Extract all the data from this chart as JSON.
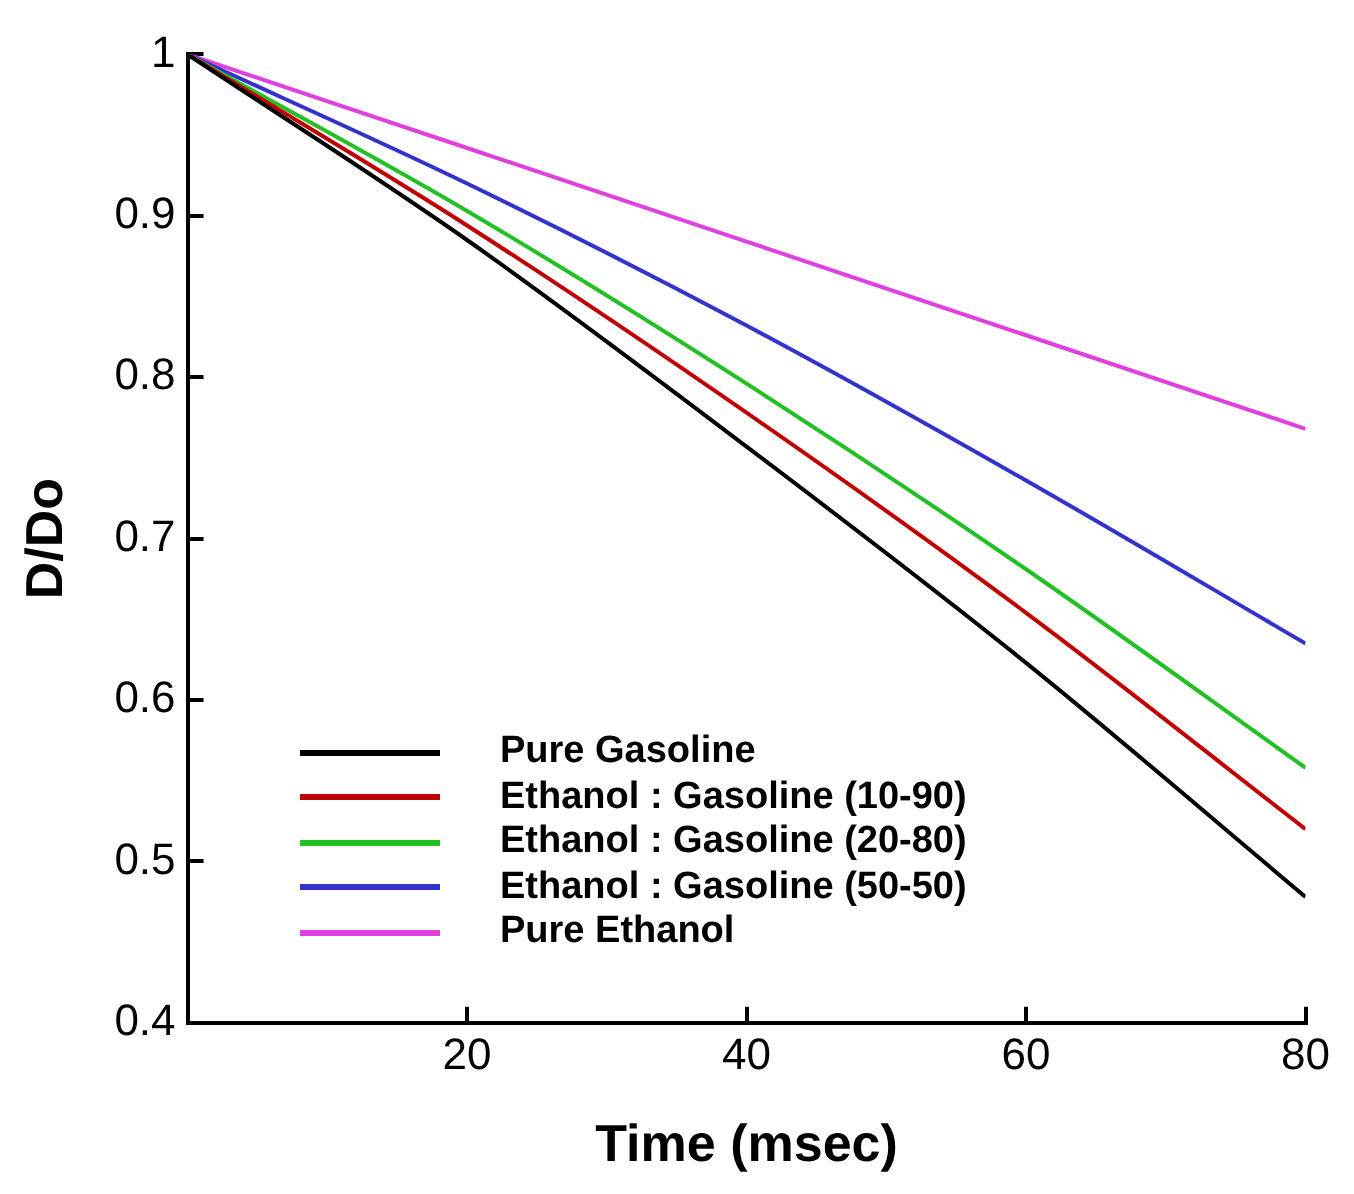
{
  "chart_data": {
    "type": "line",
    "xlabel": "Time (msec)",
    "ylabel": "D/Do",
    "x": [
      0,
      20,
      40,
      60,
      80
    ],
    "series": [
      {
        "name": "Pure Gasoline",
        "color": "#000000",
        "values": [
          1,
          0.885,
          0.757,
          0.623,
          0.478
        ]
      },
      {
        "name": "Ethanol : Gasoline (10-90)",
        "color": "#c00000",
        "values": [
          1,
          0.894,
          0.778,
          0.654,
          0.52
        ]
      },
      {
        "name": "Ethanol : Gasoline (20-80)",
        "color": "#22c022",
        "values": [
          1,
          0.903,
          0.796,
          0.681,
          0.558
        ]
      },
      {
        "name": "Ethanol : Gasoline (50-50)",
        "color": "#3333cc",
        "values": [
          1,
          0.92,
          0.832,
          0.736,
          0.635
        ]
      },
      {
        "name": "Pure Ethanol",
        "color": "#e040e0",
        "values": [
          1,
          0.942,
          0.884,
          0.826,
          0.768
        ]
      }
    ],
    "xlim": [
      0,
      80
    ],
    "xticks": [
      20,
      40,
      60,
      80
    ],
    "ylim": [
      0.4,
      1
    ],
    "yticks": [
      0.4,
      0.5,
      0.6,
      0.7,
      0.8,
      0.9,
      1
    ],
    "grid": false,
    "legend": "bottom left",
    "marker": "none",
    "line_style": "solid"
  }
}
